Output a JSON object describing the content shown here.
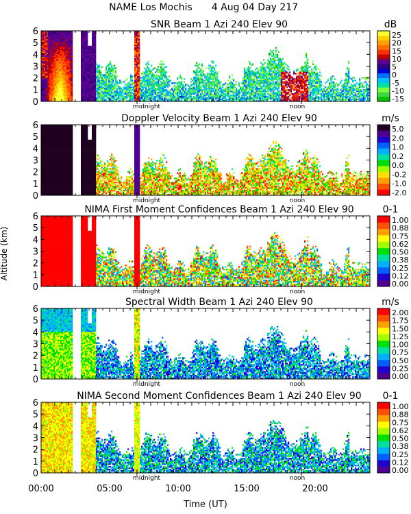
{
  "header": {
    "line1": "NAME Los Mochis",
    "date": "4 Aug 04 Day 217"
  },
  "xaxis": {
    "label": "Time (UT)",
    "ticks": [
      "00:00",
      "05:00",
      "10:00",
      "15:00",
      "20:00"
    ],
    "tick_hours": [
      0,
      5,
      10,
      15,
      20
    ],
    "midnight_label": "midnight",
    "noon_label": "noon",
    "midnight_hour": 7.0,
    "noon_hour": 19.0,
    "range_hours": [
      0,
      24
    ]
  },
  "yaxis": {
    "label": "Altitude (km)",
    "ticks": [
      "0",
      "1",
      "2",
      "3",
      "4",
      "5",
      "6"
    ],
    "range": [
      0,
      6
    ]
  },
  "chart_data": [
    {
      "type": "heatmap",
      "title": "SNR Beam 1 Azi 240 Elev 90",
      "unit": "dB",
      "colorbar_ticks": [
        "25",
        "20",
        "15",
        "10",
        "5",
        "0",
        "-5",
        "-10",
        "-15"
      ],
      "colorscale": [
        "#00c000",
        "#40d840",
        "#80ff40",
        "#00e0a0",
        "#00c0ff",
        "#0070ff",
        "#0000d0",
        "#300080",
        "#600090",
        "#c00000",
        "#ff3000",
        "#ff7000",
        "#ffa000",
        "#ffd000",
        "#ffff30"
      ],
      "xlim": [
        0,
        24
      ],
      "ylim": [
        0,
        6
      ]
    },
    {
      "type": "heatmap",
      "title": "Doppler Velocity Beam 1 Azi 240 Elev 90",
      "unit": "m/s",
      "colorbar_ticks": [
        "5.0",
        "2.0",
        "1.0",
        "0.2",
        "0.0",
        "-0.2",
        "-1.0",
        "-2.0"
      ],
      "colorscale": [
        "#ff0000",
        "#ff5000",
        "#ffa000",
        "#ffe000",
        "#a0ff00",
        "#00e000",
        "#00e0a0",
        "#00b0ff",
        "#0060ff",
        "#2000d0",
        "#500090",
        "#200020"
      ],
      "xlim": [
        0,
        24
      ],
      "ylim": [
        0,
        6
      ]
    },
    {
      "type": "heatmap",
      "title": "NIMA First Moment Confidences Beam 1 Azi 240 Elev 90",
      "unit": "0-1",
      "colorbar_ticks": [
        "1.00",
        "0.88",
        "0.75",
        "0.62",
        "0.50",
        "0.38",
        "0.25",
        "0.12",
        "0.00"
      ],
      "colorscale": [
        "#500090",
        "#2000d0",
        "#0060ff",
        "#00b0ff",
        "#00e0a0",
        "#00e000",
        "#a0ff00",
        "#ffff00",
        "#ffa000",
        "#ff5000",
        "#ff0000"
      ],
      "xlim": [
        0,
        24
      ],
      "ylim": [
        0,
        6
      ]
    },
    {
      "type": "heatmap",
      "title": "Spectral Width Beam 1 Azi 240 Elev 90",
      "unit": "m/s",
      "colorbar_ticks": [
        "2.00",
        "1.75",
        "1.50",
        "1.25",
        "1.00",
        "0.75",
        "0.50",
        "0.25",
        "0.00"
      ],
      "colorscale": [
        "#500090",
        "#2000d0",
        "#0060ff",
        "#00b0ff",
        "#00e0a0",
        "#00e000",
        "#a0ff00",
        "#ffff00",
        "#ffa000",
        "#ff5000",
        "#ff0000"
      ],
      "xlim": [
        0,
        24
      ],
      "ylim": [
        0,
        6
      ]
    },
    {
      "type": "heatmap",
      "title": "NIMA Second Moment Confidences Beam 1 Azi 240 Elev 90",
      "unit": "0-1",
      "colorbar_ticks": [
        "1.00",
        "0.88",
        "0.75",
        "0.62",
        "0.50",
        "0.38",
        "0.25",
        "0.12",
        "0.00"
      ],
      "colorscale": [
        "#500090",
        "#2000d0",
        "#0060ff",
        "#00b0ff",
        "#00e0a0",
        "#00e000",
        "#a0ff00",
        "#ffff00",
        "#ffa000",
        "#ff5000",
        "#ff0000"
      ],
      "xlim": [
        0,
        24
      ],
      "ylim": [
        0,
        6
      ]
    }
  ]
}
